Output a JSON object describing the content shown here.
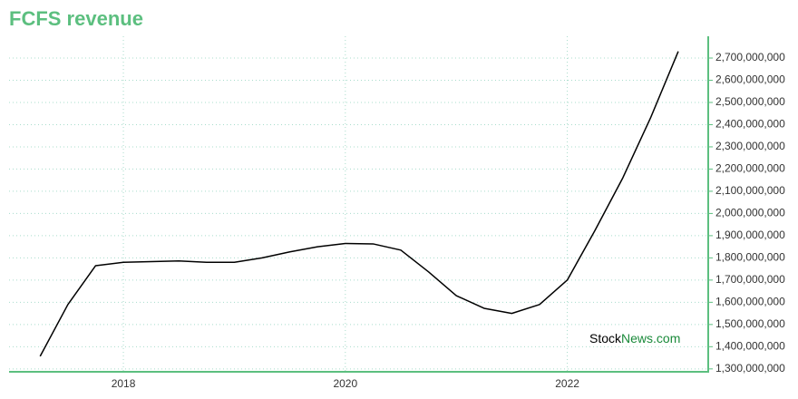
{
  "chart_data": {
    "type": "line",
    "title": "FCFS revenue",
    "watermark": [
      "Stock",
      "News.com"
    ],
    "x": [
      2017.25,
      2017.5,
      2017.75,
      2018,
      2018.25,
      2018.5,
      2018.75,
      2019,
      2019.25,
      2019.5,
      2019.75,
      2020,
      2020.25,
      2020.5,
      2020.75,
      2021,
      2021.25,
      2021.5,
      2021.75,
      2022,
      2022.25,
      2022.5,
      2022.75,
      2023
    ],
    "series": [
      {
        "name": "Revenue",
        "color": "#000000",
        "values": [
          1357000000,
          1590000000,
          1765000000,
          1780000000,
          1783000000,
          1786000000,
          1780000000,
          1780000000,
          1800000000,
          1827000000,
          1850000000,
          1865000000,
          1863000000,
          1835000000,
          1737000000,
          1630000000,
          1573000000,
          1550000000,
          1590000000,
          1700000000,
          1924000000,
          2160000000,
          2430000000,
          2730000000
        ]
      }
    ],
    "xlim": [
      2016.97,
      2023.27
    ],
    "xticks": [
      2018,
      2020,
      2022
    ],
    "ylim": [
      1287000000,
      2798000000
    ],
    "yticks": [
      {
        "value": 1300000000,
        "label": "1,300,000,000"
      },
      {
        "value": 1400000000,
        "label": "1,400,000,000"
      },
      {
        "value": 1500000000,
        "label": "1,500,000,000"
      },
      {
        "value": 1600000000,
        "label": "1,600,000,000"
      },
      {
        "value": 1700000000,
        "label": "1,700,000,000"
      },
      {
        "value": 1800000000,
        "label": "1,800,000,000"
      },
      {
        "value": 1900000000,
        "label": "1,900,000,000"
      },
      {
        "value": 2000000000,
        "label": "2,000,000,000"
      },
      {
        "value": 2100000000,
        "label": "2,100,000,000"
      },
      {
        "value": 2200000000,
        "label": "2,200,000,000"
      },
      {
        "value": 2300000000,
        "label": "2,300,000,000"
      },
      {
        "value": 2400000000,
        "label": "2,400,000,000"
      },
      {
        "value": 2500000000,
        "label": "2,500,000,000"
      },
      {
        "value": 2600000000,
        "label": "2,600,000,000"
      },
      {
        "value": 2700000000,
        "label": "2,700,000,000"
      }
    ],
    "grid": true,
    "axis_color": "#5cbf7f",
    "grid_color": "#a8dccb"
  }
}
